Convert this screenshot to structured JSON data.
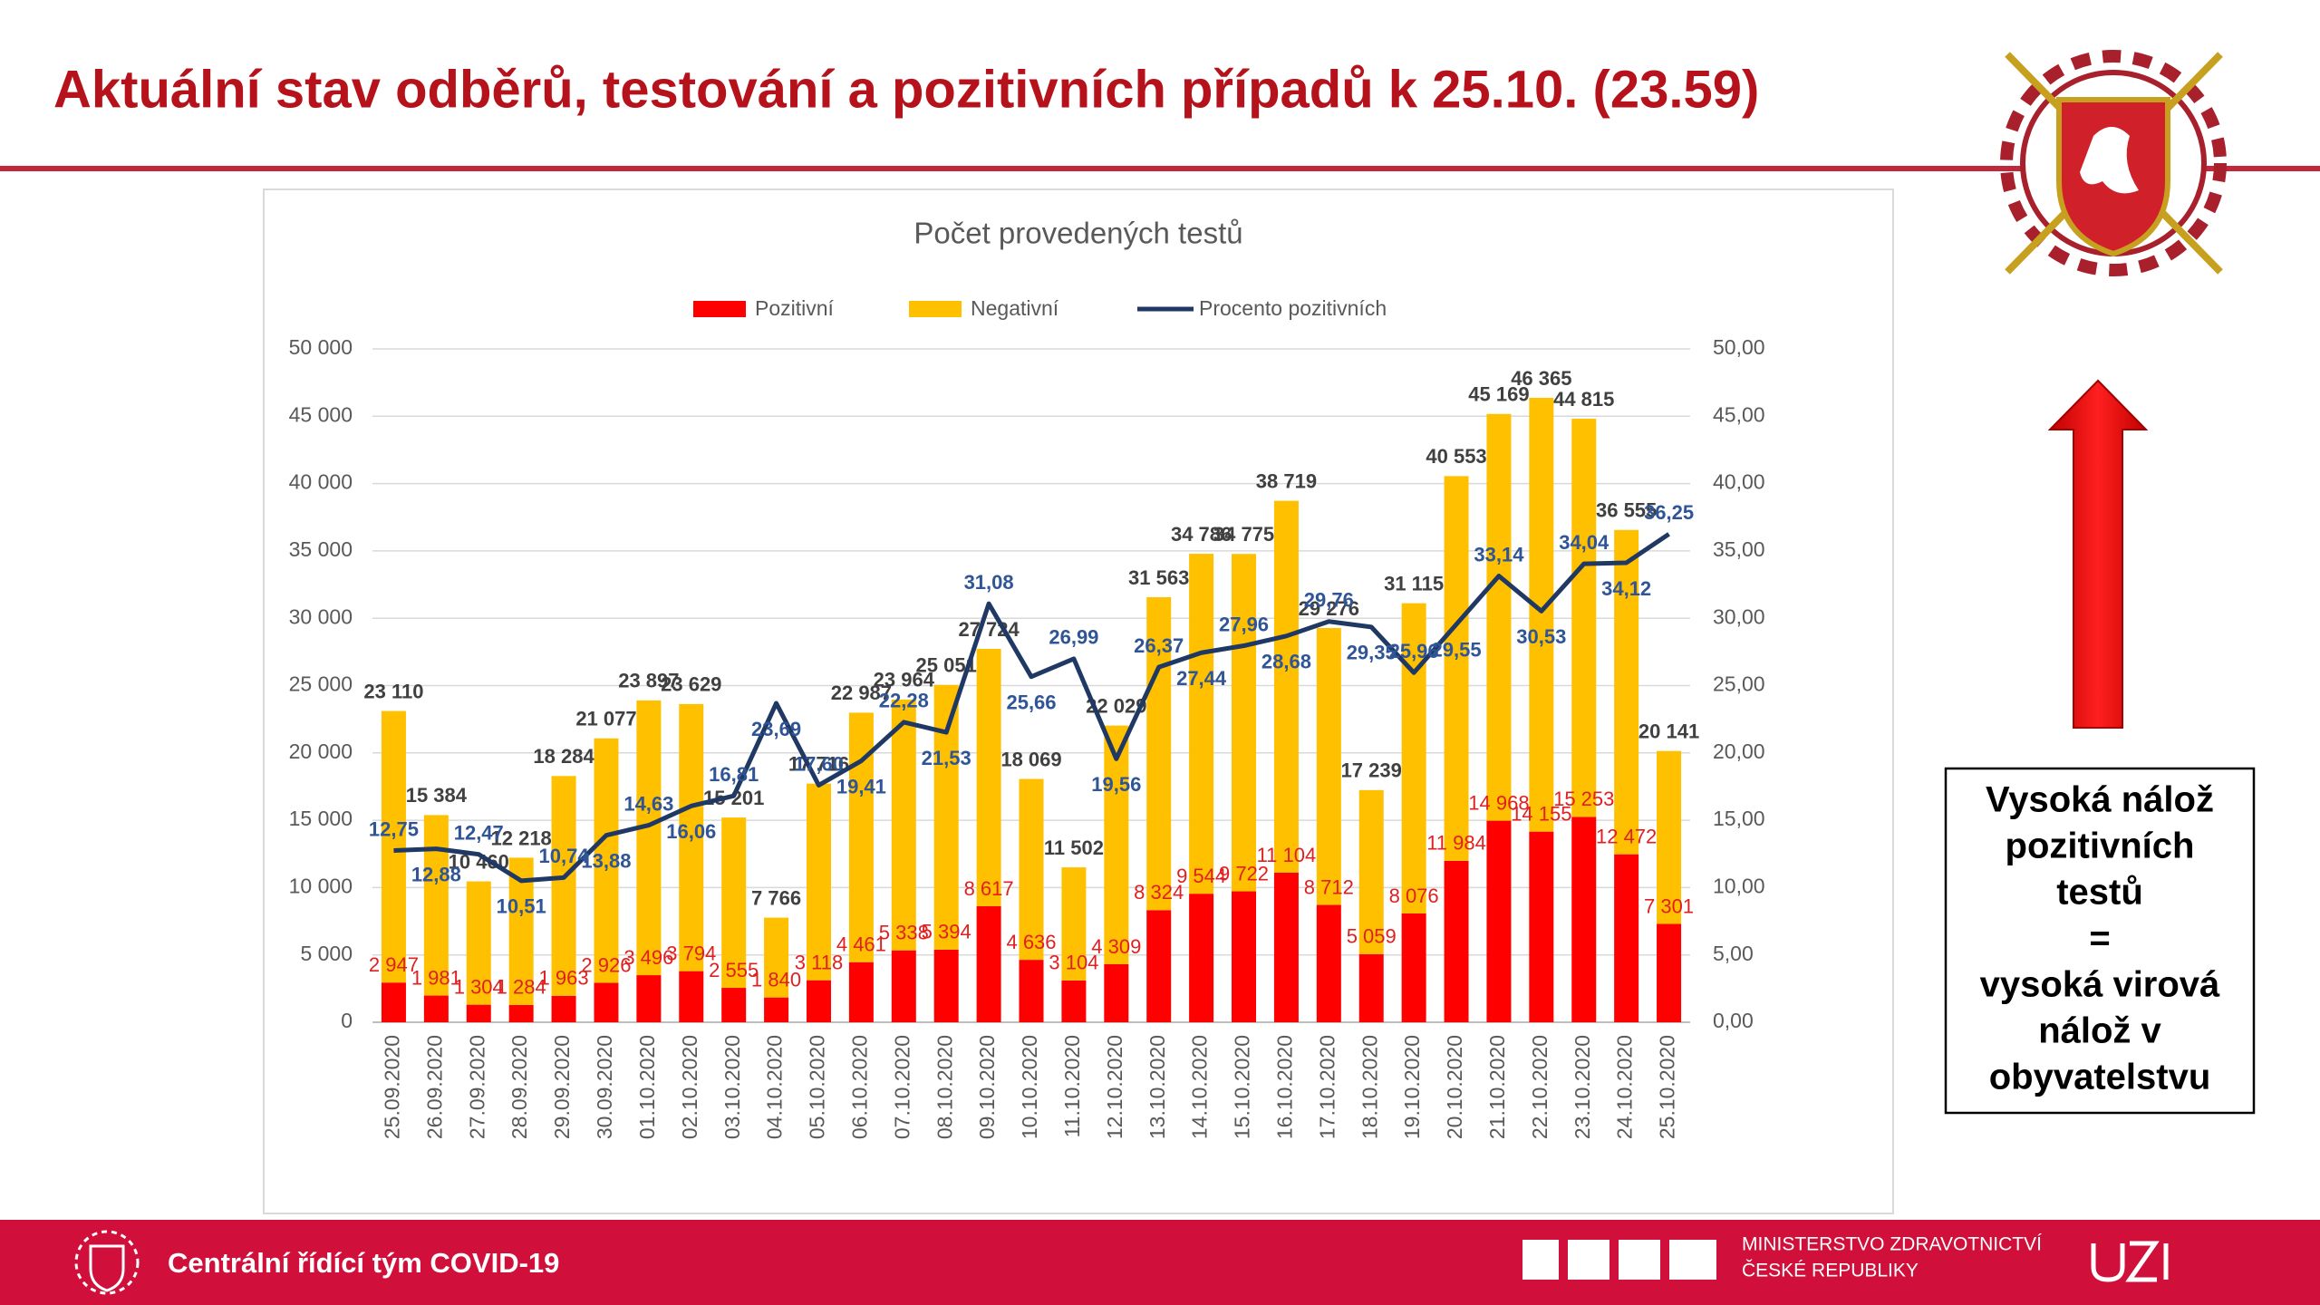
{
  "slide": {
    "title": "Aktuální stav odběrů, testování a pozitivních případů k 25.10. (23.59)",
    "note": [
      "Vysoká nálož",
      "pozitivních",
      "testů",
      "=",
      "vysoká virová",
      "nálož v",
      "obyvatelstvu"
    ],
    "footer": "Centrální řídící tým COVID-19",
    "ministry": [
      "MINISTERSTVO ZDRAVOTNICTVÍ",
      "ČESKÉ REPUBLIKY"
    ]
  },
  "chart_data": {
    "type": "bar",
    "stacked": true,
    "title": "Počet provedených testů",
    "legend": "top",
    "categories": [
      "25.09.2020",
      "26.09.2020",
      "27.09.2020",
      "28.09.2020",
      "29.09.2020",
      "30.09.2020",
      "01.10.2020",
      "02.10.2020",
      "03.10.2020",
      "04.10.2020",
      "05.10.2020",
      "06.10.2020",
      "07.10.2020",
      "08.10.2020",
      "09.10.2020",
      "10.10.2020",
      "11.10.2020",
      "12.10.2020",
      "13.10.2020",
      "14.10.2020",
      "15.10.2020",
      "16.10.2020",
      "17.10.2020",
      "18.10.2020",
      "19.10.2020",
      "20.10.2020",
      "21.10.2020",
      "22.10.2020",
      "23.10.2020",
      "24.10.2020",
      "25.10.2020"
    ],
    "series": [
      {
        "name": "Pozitivní",
        "color": "#ff0000",
        "values": [
          2947,
          1981,
          1304,
          1284,
          1963,
          2926,
          3496,
          3794,
          2555,
          1840,
          3118,
          4461,
          5338,
          5394,
          8617,
          4636,
          3104,
          4309,
          8324,
          9544,
          9722,
          11104,
          8712,
          5059,
          8076,
          11984,
          14968,
          14155,
          15253,
          12472,
          7301
        ],
        "value_labels": [
          "2 947",
          "1 981",
          "1 304",
          "1 284",
          "1 963",
          "2 926",
          "3 496",
          "3 794",
          "2 555",
          "1 840",
          "3 118",
          "4 461",
          "5 338",
          "5 394",
          "8 617",
          "4 636",
          "3 104",
          "4 309",
          "8 324",
          "9 544",
          "9 722",
          "11 104",
          "8 712",
          "5 059",
          "8 076",
          "11 984",
          "14 968",
          "14 155",
          "15 253",
          "12 472",
          "7 301"
        ]
      },
      {
        "name": "Negativní",
        "color": "#ffc000",
        "values": [
          20163,
          13403,
          9156,
          10934,
          16321,
          18151,
          20401,
          19835,
          12646,
          5926,
          14598,
          18526,
          18626,
          19657,
          19107,
          13433,
          8398,
          17720,
          23239,
          25242,
          25053,
          27615,
          20564,
          12180,
          23039,
          28569,
          30201,
          32210,
          29562,
          24083,
          12840
        ]
      },
      {
        "name": "Procento pozitivních",
        "color": "#1f3864",
        "axis": "y2",
        "values": [
          12.75,
          12.88,
          12.47,
          10.51,
          10.74,
          13.88,
          14.63,
          16.06,
          16.81,
          23.69,
          17.6,
          19.41,
          22.28,
          21.53,
          31.08,
          25.66,
          26.99,
          19.56,
          26.37,
          27.44,
          27.96,
          28.68,
          29.76,
          29.35,
          25.96,
          29.55,
          33.14,
          30.53,
          34.04,
          34.12,
          36.25
        ],
        "value_labels": [
          "12,75",
          "12,88",
          "12,47",
          "10,51",
          "10,74",
          "13,88",
          "14,63",
          "16,06",
          "16,81",
          "23,69",
          "17,60",
          "19,41",
          "22,28",
          "21,53",
          "31,08",
          "25,66",
          "26,99",
          "19,56",
          "26,37",
          "27,44",
          "27,96",
          "28,68",
          "29,76",
          "29,35",
          "25,96",
          "29,55",
          "33,14",
          "30,53",
          "34,04",
          "34,12",
          "36,25"
        ]
      }
    ],
    "totals": [
      23110,
      15384,
      10460,
      12218,
      18284,
      21077,
      23897,
      23629,
      15201,
      7766,
      17716,
      22987,
      23964,
      25051,
      27724,
      18069,
      11502,
      22029,
      31563,
      34786,
      34775,
      38719,
      29276,
      17239,
      31115,
      40553,
      45169,
      46365,
      44815,
      36555,
      20141
    ],
    "total_labels": [
      "23 110",
      "15 384",
      "10 460",
      "12 218",
      "18 284",
      "21 077",
      "23 897",
      "23 629",
      "15 201",
      "7 766",
      "17 716",
      "22 987",
      "23 964",
      "25 051",
      "27 724",
      "18 069",
      "11 502",
      "22 029",
      "31 563",
      "34 786",
      "34 775",
      "38 719",
      "29 276",
      "17 239",
      "31 115",
      "40 553",
      "45 169",
      "46 365",
      "44 815",
      "36 555",
      "20 141"
    ],
    "ylim": [
      0,
      50000
    ],
    "yticks": [
      0,
      {
        "value": 5000,
        "label": "5 000"
      },
      {
        "value": 10000,
        "label": "10 000"
      },
      {
        "value": 15000,
        "label": "15 000"
      },
      {
        "value": 20000,
        "label": "20 000"
      },
      {
        "value": 25000,
        "label": "25 000"
      },
      {
        "value": 30000,
        "label": "30 000"
      },
      {
        "value": 35000,
        "label": "35 000"
      },
      {
        "value": 40000,
        "label": "40 000"
      },
      {
        "value": 45000,
        "label": "45 000"
      },
      {
        "value": 50000,
        "label": "50 000"
      }
    ],
    "y2lim": [
      0,
      50
    ],
    "y2ticks": [
      {
        "value": 0,
        "label": "0,00"
      },
      {
        "value": 5,
        "label": "5,00"
      },
      {
        "value": 10,
        "label": "10,00"
      },
      {
        "value": 15,
        "label": "15,00"
      },
      {
        "value": 20,
        "label": "20,00"
      },
      {
        "value": 25,
        "label": "25,00"
      },
      {
        "value": 30,
        "label": "30,00"
      },
      {
        "value": 35,
        "label": "35,00"
      },
      {
        "value": 40,
        "label": "40,00"
      },
      {
        "value": 45,
        "label": "45,00"
      },
      {
        "value": 50,
        "label": "50,00"
      }
    ],
    "grid": true
  }
}
